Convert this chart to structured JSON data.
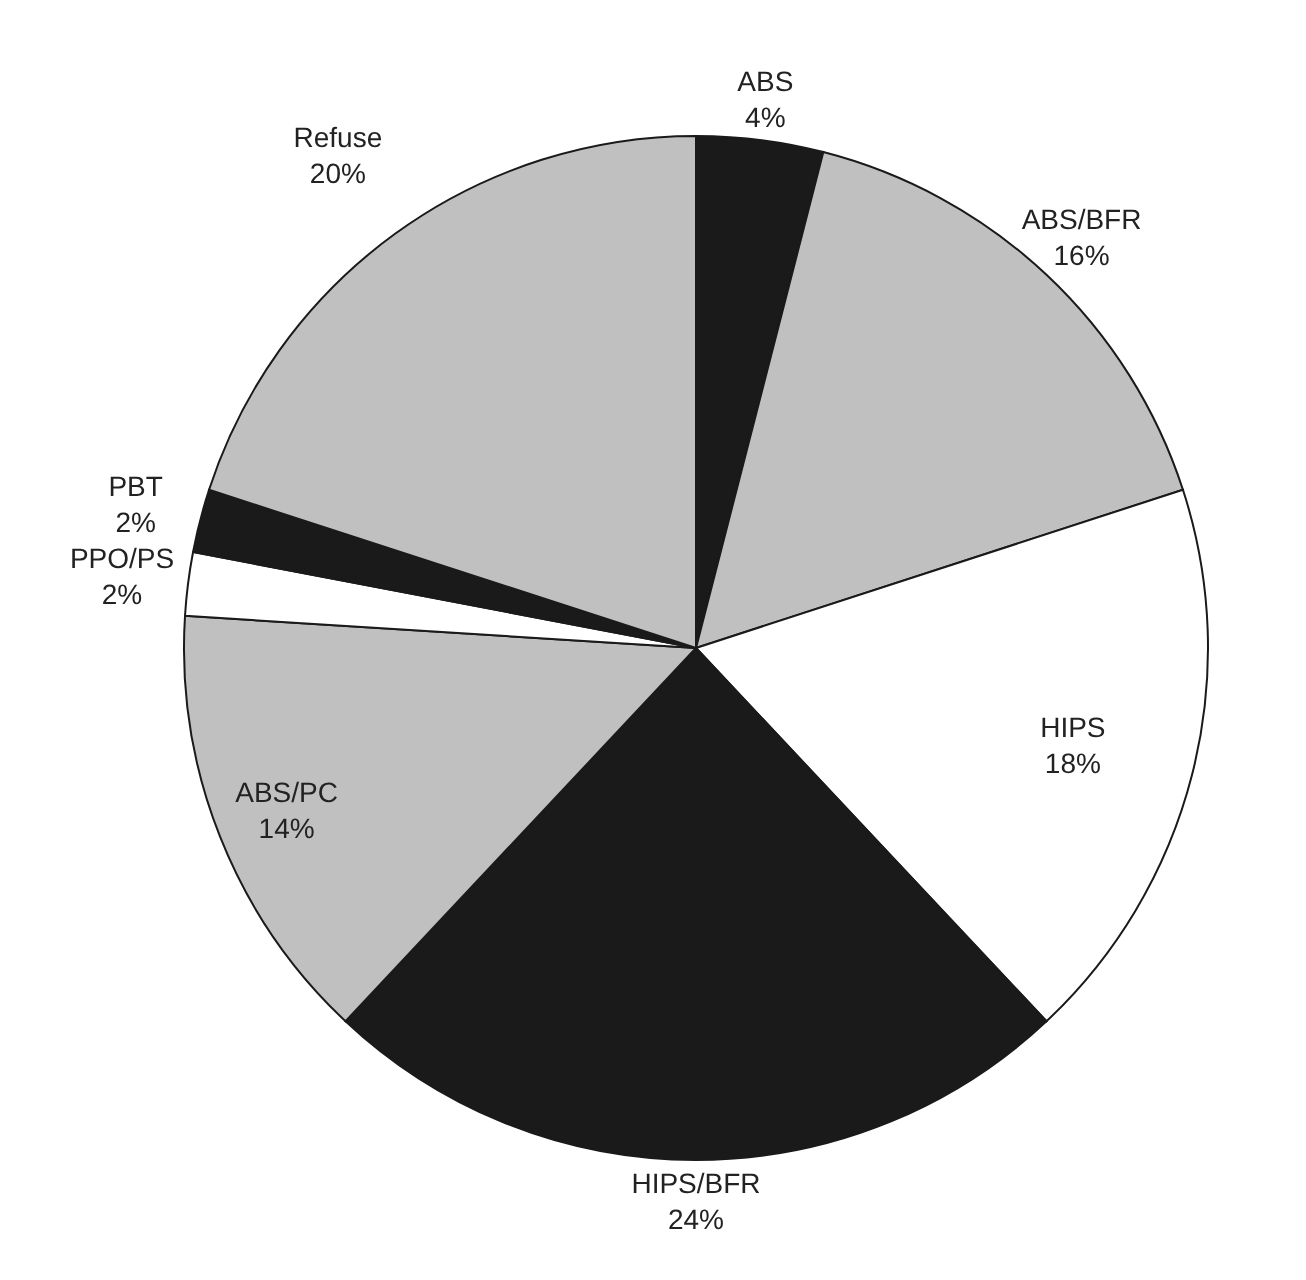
{
  "chart_data": {
    "type": "pie",
    "categories": [
      "ABS",
      "ABS/BFR",
      "HIPS",
      "HIPS/BFR",
      "ABS/PC",
      "PPO/PS",
      "PBT",
      "Refuse"
    ],
    "values": [
      4,
      16,
      18,
      24,
      14,
      2,
      2,
      20
    ],
    "colors": [
      "#1a1a1a",
      "#c0c0c0",
      "#ffffff",
      "#1a1a1a",
      "#c0c0c0",
      "#ffffff",
      "#1a1a1a",
      "#c0c0c0"
    ],
    "value_labels": [
      "4%",
      "16%",
      "18%",
      "24%",
      "14%",
      "2%",
      "2%",
      "20%"
    ]
  }
}
